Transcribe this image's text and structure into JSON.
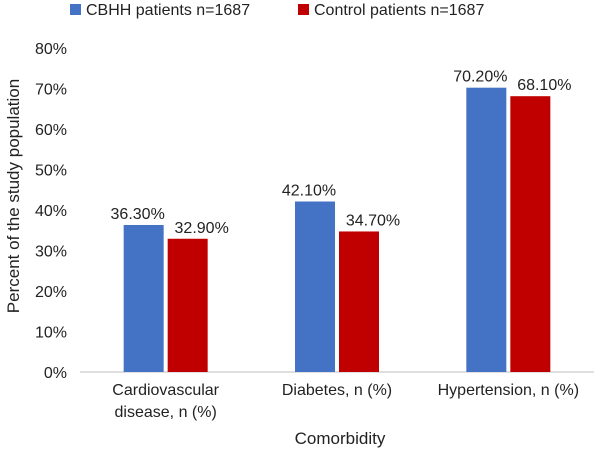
{
  "chart_data": {
    "type": "bar",
    "title": "",
    "xlabel": "Comorbidity",
    "ylabel": "Percent of the study population",
    "ylim": [
      0,
      80
    ],
    "yticks": [
      0,
      10,
      20,
      30,
      40,
      50,
      60,
      70,
      80
    ],
    "ytick_labels": [
      "0%",
      "10%",
      "20%",
      "30%",
      "40%",
      "50%",
      "60%",
      "70%",
      "80%"
    ],
    "grid": false,
    "legend_position": "top",
    "categories": [
      [
        "Cardiovascular",
        "disease, n (%)"
      ],
      [
        "Diabetes, n (%)"
      ],
      [
        "Hypertension, n (%)"
      ]
    ],
    "series": [
      {
        "name": "CBHH patients n=1687",
        "color": "#4472C4",
        "values": [
          36.3,
          42.1,
          70.2
        ],
        "labels": [
          "36.30%",
          "42.10%",
          "70.20%"
        ]
      },
      {
        "name": "Control patients n=1687",
        "color": "#C00000",
        "values": [
          32.9,
          34.7,
          68.1
        ],
        "labels": [
          "32.90%",
          "34.70%",
          "68.10%"
        ]
      }
    ]
  }
}
